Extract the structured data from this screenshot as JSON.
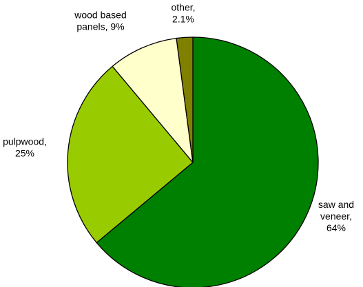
{
  "chart_data": {
    "type": "pie",
    "title": "",
    "start_angle_deg": 0,
    "direction": "clockwise",
    "slices": [
      {
        "label_lines": [
          "saw and",
          "veneer,",
          "64%"
        ],
        "value": 64.0,
        "color": "#008000"
      },
      {
        "label_lines": [
          "pulpwood,",
          "25%"
        ],
        "value": 25.0,
        "color": "#99cc00"
      },
      {
        "label_lines": [
          "wood based",
          "panels, 9%"
        ],
        "value": 9.0,
        "color": "#ffffcc"
      },
      {
        "label_lines": [
          "other,",
          "2.1%"
        ],
        "value": 2.1,
        "color": "#808000"
      }
    ]
  }
}
